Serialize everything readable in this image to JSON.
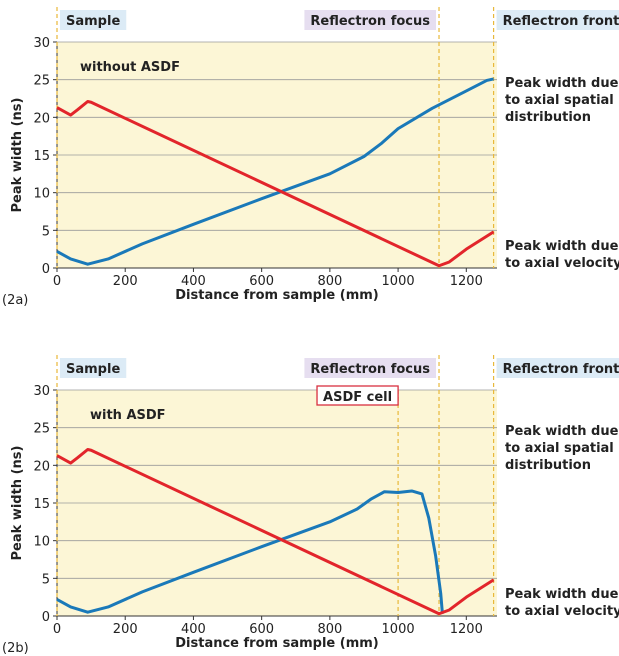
{
  "chart_data": [
    {
      "type": "line",
      "panel_label": "(2a)",
      "annotation": "without ASDF",
      "xlabel": "Distance from sample (mm)",
      "ylabel": "Peak width (ns)",
      "xlim": [
        0,
        1290
      ],
      "ylim": [
        0,
        30
      ],
      "xticks": [
        0,
        200,
        400,
        600,
        800,
        1000,
        1200
      ],
      "yticks": [
        0,
        5,
        10,
        15,
        20,
        25,
        30
      ],
      "grid": true,
      "markers": [
        {
          "label": "Sample",
          "x": 0,
          "side": "right",
          "color": "#dcebf6"
        },
        {
          "label": "Reflectron focus",
          "x": 1120,
          "side": "left",
          "color": "#e6def0"
        },
        {
          "label": "Reflectron front",
          "x": 1280,
          "side": "right",
          "color": "#dcebf6"
        }
      ],
      "series": [
        {
          "name": "Peak width due\nto axial spatial\ndistribution",
          "color": "#1a79b9",
          "x": [
            0,
            40,
            90,
            150,
            250,
            400,
            600,
            800,
            900,
            950,
            1000,
            1100,
            1200,
            1260,
            1280
          ],
          "values": [
            2.2,
            1.2,
            0.5,
            1.2,
            3.2,
            5.8,
            9.2,
            12.5,
            14.8,
            16.5,
            18.5,
            21.2,
            23.5,
            24.9,
            25.1
          ]
        },
        {
          "name": "Peak width due\nto axial velocity",
          "color": "#e2252b",
          "x": [
            0,
            40,
            60,
            90,
            100,
            1120,
            1150,
            1200,
            1280
          ],
          "values": [
            21.3,
            20.3,
            21.0,
            22.1,
            22.0,
            0.3,
            0.8,
            2.5,
            4.8
          ]
        }
      ]
    },
    {
      "type": "line",
      "panel_label": "(2b)",
      "annotation": "with ASDF",
      "xlabel": "Distance from sample (mm)",
      "ylabel": "Peak width (ns)",
      "xlim": [
        0,
        1290
      ],
      "ylim": [
        0,
        30
      ],
      "xticks": [
        0,
        200,
        400,
        600,
        800,
        1000,
        1200
      ],
      "yticks": [
        0,
        5,
        10,
        15,
        20,
        25,
        30
      ],
      "grid": true,
      "markers": [
        {
          "label": "Sample",
          "x": 0,
          "side": "right",
          "color": "#dcebf6"
        },
        {
          "label": "Reflectron focus",
          "x": 1120,
          "side": "left",
          "color": "#e6def0"
        },
        {
          "label": "Reflectron front",
          "x": 1280,
          "side": "right",
          "color": "#dcebf6"
        }
      ],
      "cell": {
        "label": "ASDF cell",
        "x": 1000
      },
      "series": [
        {
          "name": "Peak width due\nto axial spatial\ndistribution",
          "color": "#1a79b9",
          "x": [
            0,
            40,
            90,
            150,
            250,
            400,
            600,
            800,
            880,
            920,
            960,
            1000,
            1040,
            1070,
            1090,
            1110,
            1125,
            1130
          ],
          "values": [
            2.2,
            1.2,
            0.5,
            1.2,
            3.2,
            5.8,
            9.2,
            12.5,
            14.2,
            15.5,
            16.5,
            16.4,
            16.6,
            16.2,
            13.0,
            8.0,
            3.0,
            0.3
          ]
        },
        {
          "name": "Peak width due\nto axial velocity",
          "color": "#e2252b",
          "x": [
            0,
            40,
            60,
            90,
            100,
            1120,
            1150,
            1200,
            1280
          ],
          "values": [
            21.3,
            20.3,
            21.0,
            22.1,
            22.0,
            0.3,
            0.8,
            2.5,
            4.8
          ]
        }
      ]
    }
  ]
}
